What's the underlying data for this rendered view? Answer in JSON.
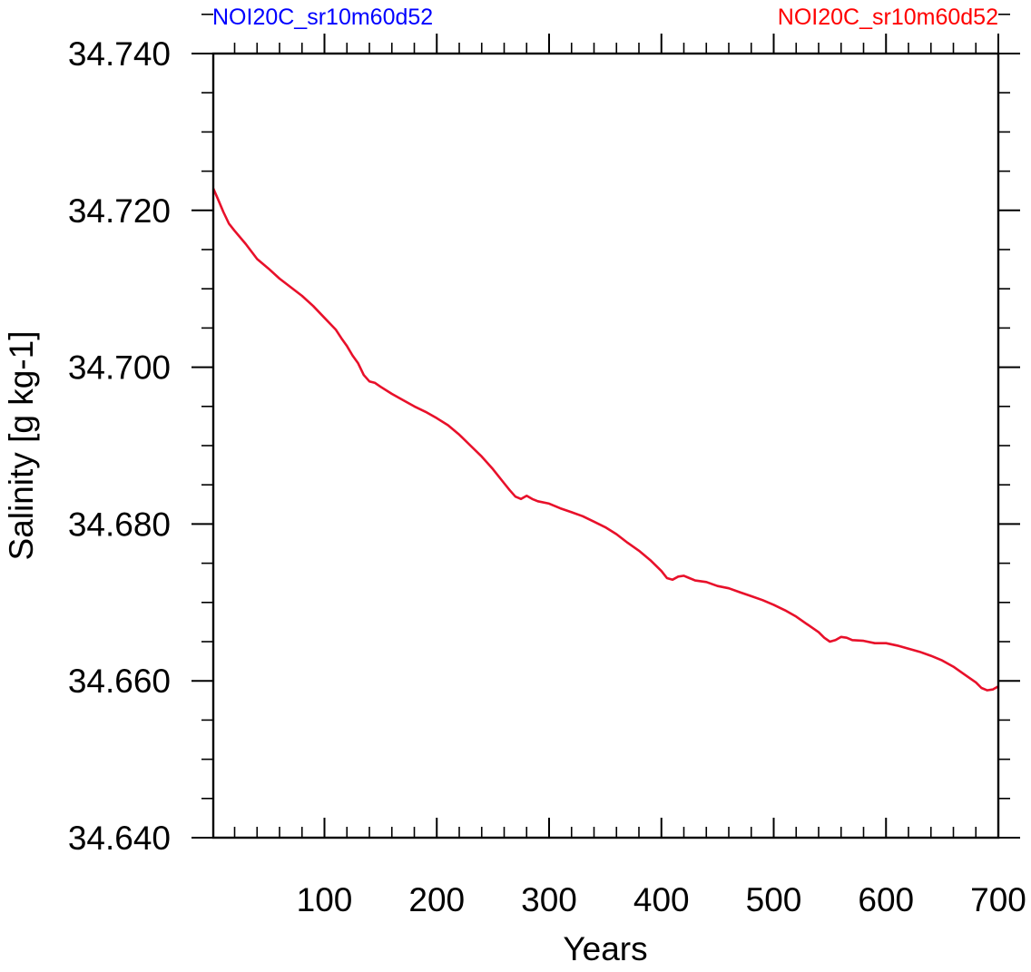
{
  "chart_data": {
    "type": "line",
    "title_left": "NOI20C_sr10m60d52",
    "title_right": "NOI20C_sr10m60d52",
    "xlabel": "Years",
    "ylabel": "Salinity [g kg-1]",
    "xlim": [
      1,
      700
    ],
    "ylim": [
      34.64,
      34.74
    ],
    "xticks": [
      100,
      200,
      300,
      400,
      500,
      600,
      700
    ],
    "yticks": [
      "34.640",
      "34.660",
      "34.680",
      "34.700",
      "34.720",
      "34.740"
    ],
    "grid": false,
    "series": [
      {
        "color_left": "#0000ff",
        "color": "#e8102a",
        "x": [
          1,
          5,
          10,
          15,
          20,
          30,
          40,
          50,
          60,
          70,
          80,
          90,
          100,
          110,
          115,
          120,
          125,
          130,
          135,
          140,
          145,
          150,
          160,
          170,
          180,
          190,
          200,
          210,
          220,
          230,
          240,
          250,
          260,
          265,
          270,
          275,
          280,
          285,
          290,
          300,
          310,
          320,
          330,
          340,
          350,
          360,
          370,
          380,
          390,
          400,
          405,
          410,
          415,
          420,
          425,
          430,
          440,
          450,
          460,
          470,
          480,
          490,
          500,
          510,
          520,
          530,
          540,
          545,
          550,
          555,
          560,
          565,
          570,
          580,
          590,
          600,
          610,
          620,
          630,
          640,
          650,
          660,
          670,
          680,
          685,
          690,
          695,
          700
        ],
        "values": [
          34.7228,
          34.7215,
          34.7198,
          34.7183,
          34.7174,
          34.7157,
          34.7138,
          34.7126,
          34.7113,
          34.7102,
          34.7091,
          34.7078,
          34.7063,
          34.7048,
          34.7037,
          34.7027,
          34.7015,
          34.7005,
          34.699,
          34.6982,
          34.698,
          34.6975,
          34.6966,
          34.6958,
          34.695,
          34.6943,
          34.6935,
          34.6926,
          34.6914,
          34.69,
          34.6886,
          34.687,
          34.6852,
          34.6843,
          34.6835,
          34.6832,
          34.6836,
          34.6832,
          34.6829,
          34.6826,
          34.682,
          34.6815,
          34.681,
          34.6803,
          34.6796,
          34.6787,
          34.6776,
          34.6766,
          34.6754,
          34.674,
          34.6731,
          34.6729,
          34.6733,
          34.6734,
          34.6731,
          34.6728,
          34.6726,
          34.6721,
          34.6718,
          34.6713,
          34.6708,
          34.6703,
          34.6697,
          34.669,
          34.6682,
          34.6672,
          34.6662,
          34.6655,
          34.665,
          34.6652,
          34.6656,
          34.6655,
          34.6652,
          34.6651,
          34.6648,
          34.6648,
          34.6645,
          34.6641,
          34.6637,
          34.6632,
          34.6626,
          34.6618,
          34.6608,
          34.6598,
          34.6591,
          34.6588,
          34.6589,
          34.6593
        ]
      }
    ]
  }
}
